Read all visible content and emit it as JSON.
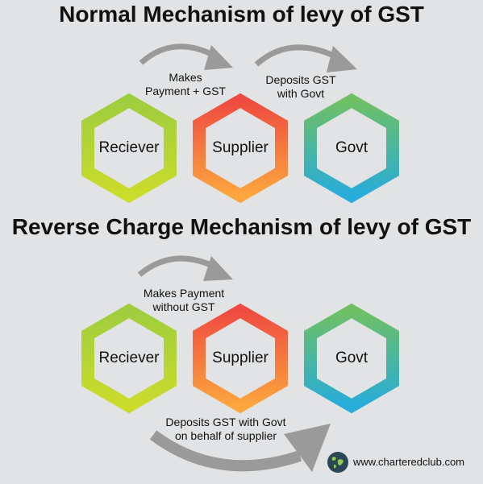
{
  "section_normal": {
    "title": "Normal  Mechanism of levy of GST",
    "hexagons": {
      "reciever": "Reciever",
      "supplier": "Supplier",
      "govt": "Govt"
    },
    "arrow_1_label": [
      "Makes",
      "Payment + GST"
    ],
    "arrow_2_label": [
      "Deposits GST",
      "with Govt"
    ]
  },
  "section_reverse": {
    "title": "Reverse Charge Mechanism of levy of GST",
    "hexagons": {
      "reciever": "Reciever",
      "supplier": "Supplier",
      "govt": "Govt"
    },
    "arrow_1_label": [
      "Makes Payment",
      "without GST"
    ],
    "arrow_2_label": [
      "Deposits GST with Govt",
      "on behalf of supplier"
    ]
  },
  "footer": {
    "website": "www.charteredclub.com",
    "icon": "globe-icon"
  },
  "colors": {
    "background": "#e2e3e4",
    "reciever_gradient": [
      "#a4cf3c",
      "#c8dc2c"
    ],
    "supplier_gradient": [
      "#ee4f3f",
      "#fba23e"
    ],
    "govt_gradient": [
      "#6dbf62",
      "#29afd9"
    ],
    "arrow": "#9a9a9a"
  }
}
